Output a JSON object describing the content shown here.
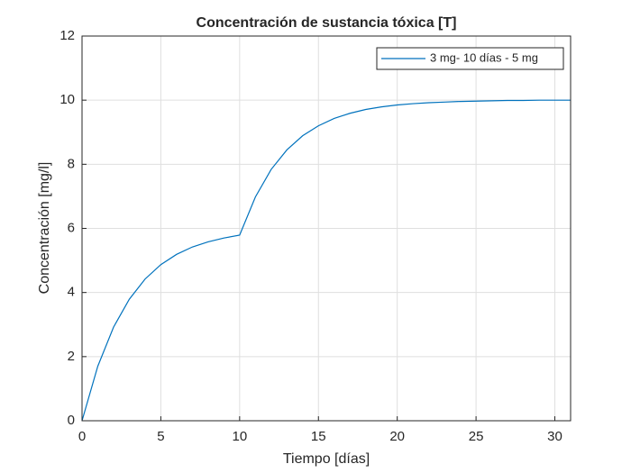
{
  "chart_data": {
    "type": "line",
    "title": "Concentración de sustancia tóxica [T]",
    "x_label": "Tiempo [días]",
    "y_label": "Concentración [mg/l]",
    "x": [
      0,
      1,
      2,
      3,
      4,
      5,
      6,
      7,
      8,
      9,
      10,
      11,
      12,
      13,
      14,
      15,
      16,
      17,
      18,
      19,
      20,
      21,
      22,
      23,
      24,
      25,
      26,
      27,
      28,
      29,
      30,
      31
    ],
    "series": [
      {
        "name": "3 mg- 10 días - 5 mg",
        "color": "#0072bd",
        "values": [
          0,
          1.7,
          2.92,
          3.79,
          4.42,
          4.87,
          5.19,
          5.42,
          5.58,
          5.7,
          5.79,
          6.98,
          7.84,
          8.45,
          8.89,
          9.2,
          9.43,
          9.59,
          9.71,
          9.79,
          9.85,
          9.89,
          9.92,
          9.94,
          9.96,
          9.97,
          9.98,
          9.99,
          9.99,
          10,
          10,
          10
        ]
      }
    ],
    "xlim": [
      0,
      31
    ],
    "xticks": [
      0,
      5,
      10,
      15,
      20,
      25,
      30
    ],
    "ylim": [
      0,
      12
    ],
    "yticks": [
      0,
      2,
      4,
      6,
      8,
      10,
      12
    ],
    "grid": true,
    "legend": "top-right"
  }
}
